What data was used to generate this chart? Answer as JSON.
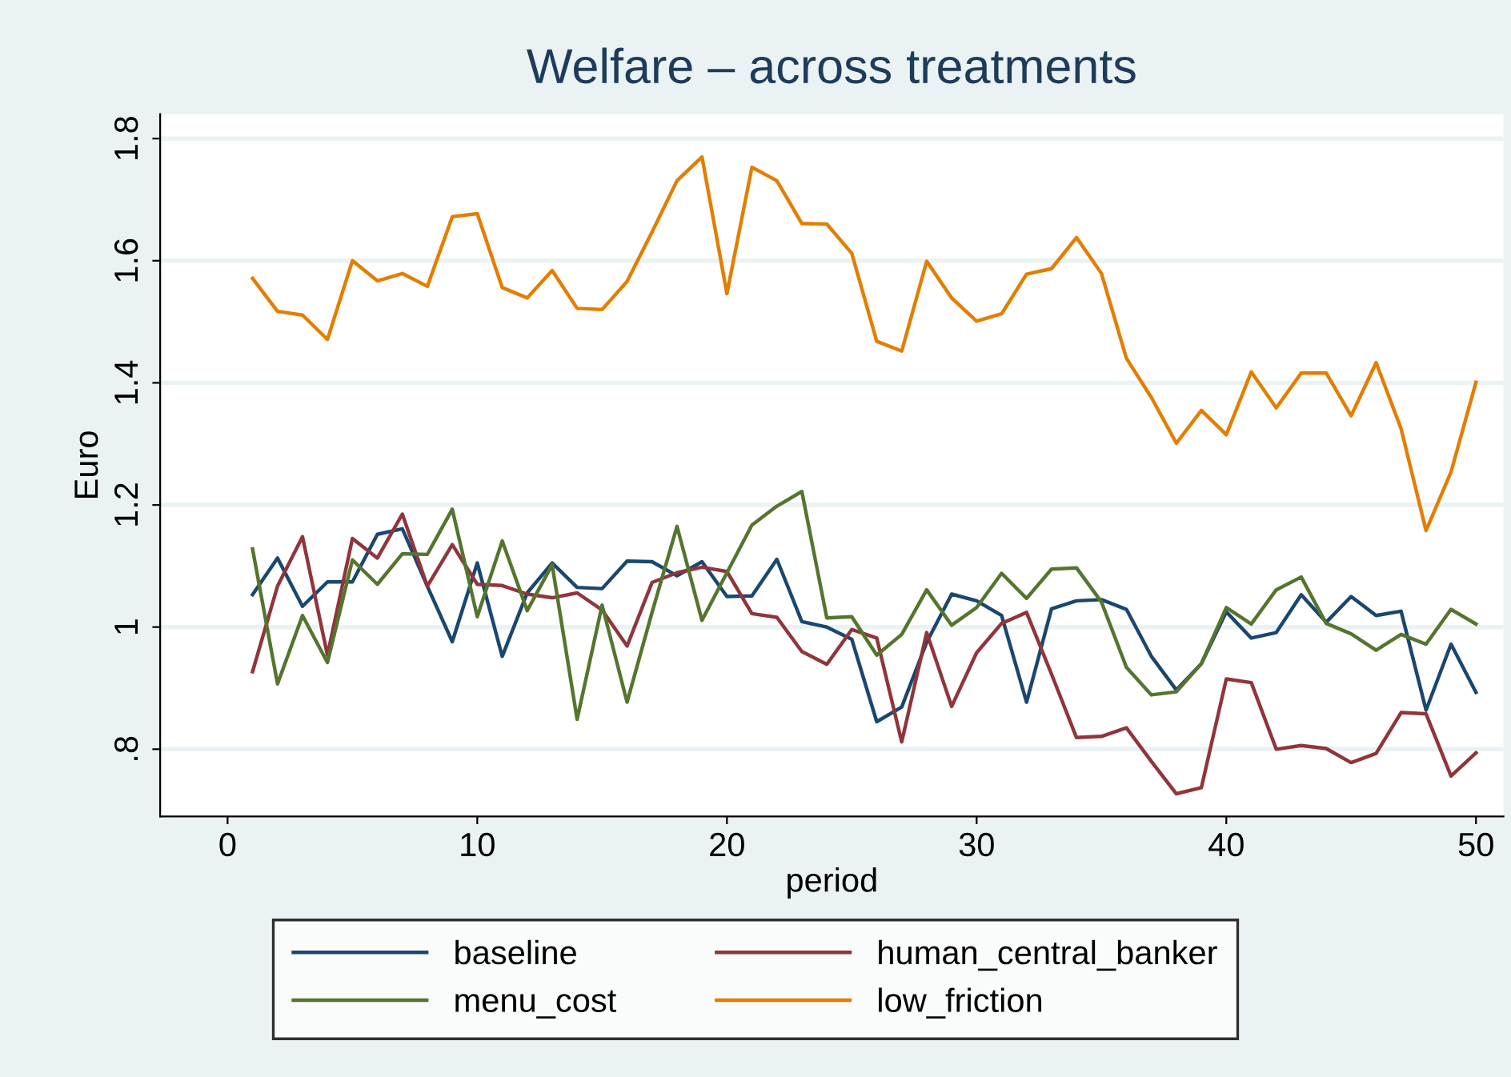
{
  "chart_data": {
    "type": "line",
    "title": "Welfare – across treatments",
    "xlabel": "period",
    "ylabel": "Euro",
    "x": [
      1,
      2,
      3,
      4,
      5,
      6,
      7,
      8,
      9,
      10,
      11,
      12,
      13,
      14,
      15,
      16,
      17,
      18,
      19,
      20,
      21,
      22,
      23,
      24,
      25,
      26,
      27,
      28,
      29,
      30,
      31,
      32,
      33,
      34,
      35,
      36,
      37,
      38,
      39,
      40,
      41,
      42,
      43,
      44,
      45,
      46,
      47,
      48,
      49,
      50
    ],
    "series": [
      {
        "name": "baseline",
        "color": "#1a476f",
        "values": [
          1.053,
          1.113,
          1.034,
          1.074,
          1.074,
          1.152,
          1.161,
          1.067,
          0.976,
          1.105,
          0.952,
          1.056,
          1.105,
          1.065,
          1.063,
          1.108,
          1.107,
          1.084,
          1.107,
          1.05,
          1.051,
          1.111,
          1.009,
          1.0,
          0.98,
          0.845,
          0.869,
          0.975,
          1.054,
          1.043,
          1.019,
          0.877,
          1.03,
          1.043,
          1.045,
          1.029,
          0.952,
          0.897,
          0.94,
          1.025,
          0.982,
          0.991,
          1.053,
          1.008,
          1.05,
          1.019,
          1.026,
          0.864,
          0.972,
          0.893
        ]
      },
      {
        "name": "human_central_banker",
        "color": "#90353b",
        "values": [
          0.927,
          1.067,
          1.148,
          0.954,
          1.145,
          1.113,
          1.185,
          1.067,
          1.135,
          1.07,
          1.068,
          1.054,
          1.048,
          1.056,
          1.028,
          0.969,
          1.073,
          1.089,
          1.098,
          1.091,
          1.022,
          1.016,
          0.96,
          0.939,
          0.996,
          0.982,
          0.812,
          0.991,
          0.87,
          0.958,
          1.006,
          1.024,
          0.923,
          0.819,
          0.821,
          0.835,
          0.78,
          0.727,
          0.737,
          0.915,
          0.909,
          0.8,
          0.806,
          0.801,
          0.778,
          0.793,
          0.86,
          0.858,
          0.756,
          0.794
        ]
      },
      {
        "name": "menu_cost",
        "color": "#55752f",
        "values": [
          1.128,
          0.907,
          1.019,
          0.942,
          1.11,
          1.07,
          1.12,
          1.119,
          1.193,
          1.017,
          1.141,
          1.027,
          1.102,
          0.849,
          1.036,
          0.877,
          1.024,
          1.165,
          1.011,
          1.089,
          1.167,
          1.198,
          1.222,
          1.015,
          1.017,
          0.954,
          0.988,
          1.061,
          1.003,
          1.032,
          1.088,
          1.047,
          1.095,
          1.097,
          1.041,
          0.934,
          0.889,
          0.894,
          0.94,
          1.032,
          1.005,
          1.061,
          1.082,
          1.006,
          0.989,
          0.962,
          0.988,
          0.972,
          1.029,
          1.005
        ]
      },
      {
        "name": "low_friction",
        "color": "#e37e00",
        "values": [
          1.571,
          1.517,
          1.511,
          1.471,
          1.6,
          1.567,
          1.579,
          1.558,
          1.672,
          1.677,
          1.556,
          1.539,
          1.584,
          1.522,
          1.52,
          1.566,
          1.647,
          1.731,
          1.77,
          1.546,
          1.753,
          1.731,
          1.661,
          1.66,
          1.612,
          1.468,
          1.452,
          1.599,
          1.539,
          1.501,
          1.513,
          1.578,
          1.587,
          1.638,
          1.579,
          1.44,
          1.376,
          1.301,
          1.355,
          1.315,
          1.418,
          1.359,
          1.416,
          1.416,
          1.346,
          1.433,
          1.325,
          1.158,
          1.254,
          1.401
        ]
      }
    ],
    "xlim": [
      -2.7,
      51.1
    ],
    "xticks": [
      0,
      10,
      20,
      30,
      40,
      50
    ],
    "ylim": [
      0.69,
      1.84
    ],
    "yticks": [
      {
        "value": 0.8,
        "label": ".8"
      },
      1,
      1.2,
      1.4,
      1.6,
      1.8
    ],
    "grid": "y",
    "legend": "bottom",
    "marker": "none",
    "line_style": "solid"
  }
}
